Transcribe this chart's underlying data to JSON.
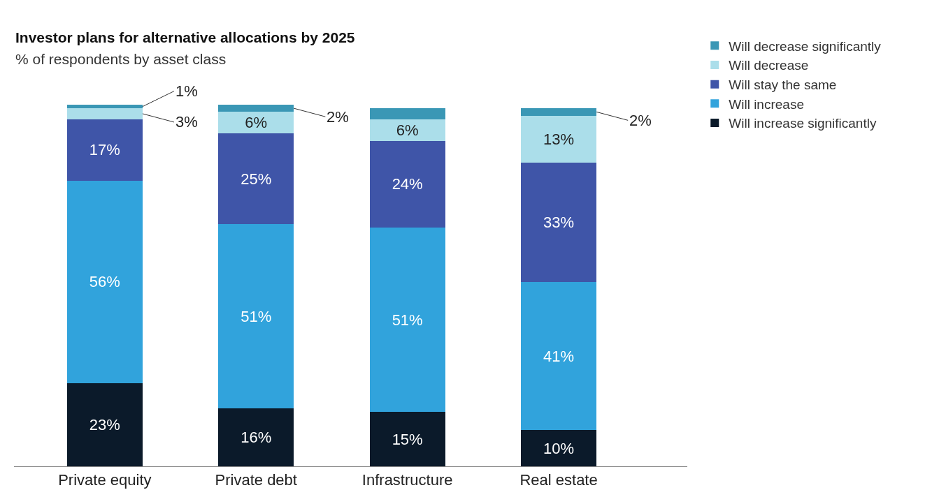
{
  "chart_data": {
    "type": "bar",
    "stacked": true,
    "title": "Investor plans for alternative allocations by 2025",
    "subtitle": "% of respondents by asset class",
    "categories": [
      "Private equity",
      "Private debt",
      "Infrastructure",
      "Real estate"
    ],
    "series": [
      {
        "name": "Will increase significantly",
        "color": "#0b1a2a",
        "values": [
          23,
          16,
          15,
          10
        ],
        "value_labels": [
          "23%",
          "16%",
          "15%",
          "10%"
        ]
      },
      {
        "name": "Will increase",
        "color": "#31a3dc",
        "values": [
          56,
          51,
          51,
          41
        ],
        "value_labels": [
          "56%",
          "51%",
          "51%",
          "41%"
        ]
      },
      {
        "name": "Will stay the same",
        "color": "#3f55a8",
        "values": [
          17,
          25,
          24,
          33
        ],
        "value_labels": [
          "17%",
          "25%",
          "24%",
          "33%"
        ]
      },
      {
        "name": "Will decrease",
        "color": "#abdeea",
        "values": [
          3,
          6,
          6,
          13
        ],
        "value_labels": [
          "3%",
          "6%",
          "6%",
          "13%"
        ]
      },
      {
        "name": "Will decrease significantly",
        "color": "#3a97b5",
        "values": [
          1,
          2,
          3,
          2
        ],
        "value_labels": [
          "1%",
          "2%",
          null,
          "2%"
        ]
      }
    ],
    "legend": "top right"
  }
}
